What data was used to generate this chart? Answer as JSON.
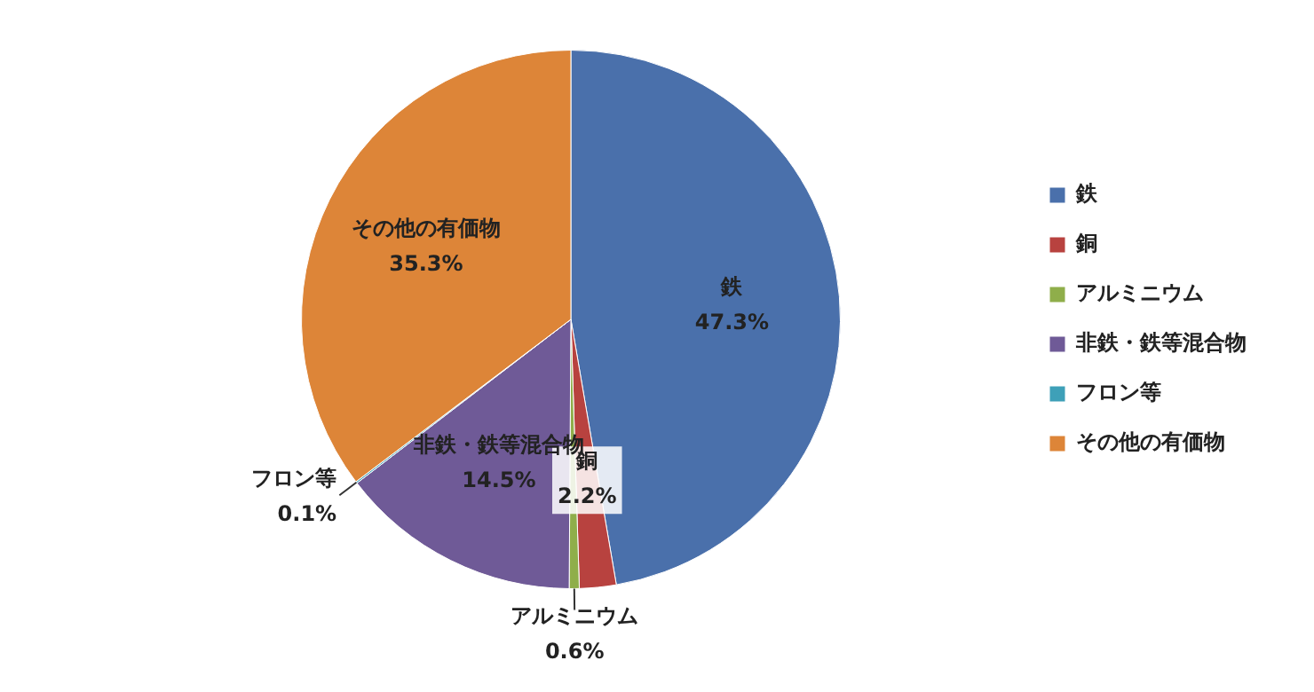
{
  "chart_data": {
    "type": "pie",
    "categories": [
      "鉄",
      "銅",
      "アルミニウム",
      "非鉄・鉄等混合物",
      "フロン等",
      "その他の有価物"
    ],
    "values": [
      47.3,
      2.2,
      0.6,
      14.5,
      0.1,
      35.3
    ],
    "colors": [
      "#4a70ab",
      "#b8423f",
      "#8fae4a",
      "#6f5a97",
      "#3ea0b8",
      "#dd8538"
    ],
    "value_labels": [
      "47.3%",
      "2.2%",
      "0.6%",
      "14.5%",
      "0.1%",
      "35.3%"
    ],
    "legend": "right"
  }
}
